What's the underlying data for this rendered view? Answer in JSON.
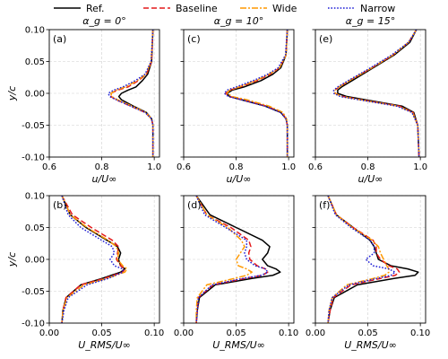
{
  "legend": {
    "entries": [
      {
        "label": "Ref.",
        "color": "#000000",
        "dash": "solid"
      },
      {
        "label": "Baseline",
        "color": "#e41a1c",
        "dash": "dashed"
      },
      {
        "label": "Wide",
        "color": "#ff9900",
        "dash": "dashdot"
      },
      {
        "label": "Narrow",
        "color": "#1f1fd6",
        "dash": "dotted"
      }
    ]
  },
  "chart_data": [
    {
      "type": "line",
      "panel": "(a)",
      "title": "α_g = 0°",
      "xlabel": "u/U∞",
      "ylabel": "y/c",
      "xlim": [
        0.6,
        1.02
      ],
      "ylim": [
        -0.1,
        0.1
      ],
      "xticks": [
        "0.6",
        "0.8",
        "1.0"
      ],
      "yticks": [
        "-0.10",
        "-0.05",
        "0.00",
        "0.05",
        "0.10"
      ],
      "y": [
        0.1,
        0.05,
        0.03,
        0.02,
        0.01,
        0.005,
        0.0,
        -0.005,
        -0.01,
        -0.02,
        -0.03,
        -0.04,
        -0.05,
        -0.1
      ],
      "series": [
        {
          "name": "Ref.",
          "values": [
            0.995,
            0.99,
            0.975,
            0.955,
            0.93,
            0.9,
            0.875,
            0.865,
            0.875,
            0.92,
            0.97,
            0.99,
            0.995,
            0.995
          ]
        },
        {
          "name": "Baseline",
          "values": [
            0.995,
            0.99,
            0.97,
            0.94,
            0.9,
            0.86,
            0.835,
            0.835,
            0.855,
            0.91,
            0.965,
            0.99,
            0.995,
            0.995
          ]
        },
        {
          "name": "Wide",
          "values": [
            0.995,
            0.988,
            0.968,
            0.935,
            0.89,
            0.855,
            0.835,
            0.838,
            0.86,
            0.915,
            0.968,
            0.99,
            0.995,
            0.995
          ]
        },
        {
          "name": "Narrow",
          "values": [
            0.995,
            0.988,
            0.965,
            0.928,
            0.88,
            0.845,
            0.825,
            0.83,
            0.855,
            0.91,
            0.965,
            0.99,
            0.995,
            0.995
          ]
        }
      ]
    },
    {
      "type": "line",
      "panel": "(c)",
      "title": "α_g = 10°",
      "xlabel": "u/U∞",
      "ylabel": "",
      "xlim": [
        0.6,
        1.02
      ],
      "ylim": [
        -0.1,
        0.1
      ],
      "xticks": [
        "0.6",
        "0.8",
        "1.0"
      ],
      "yticks": [],
      "y": [
        0.1,
        0.06,
        0.04,
        0.03,
        0.02,
        0.01,
        0.005,
        0.0,
        -0.005,
        -0.01,
        -0.02,
        -0.03,
        -0.04,
        -0.05,
        -0.1
      ],
      "series": [
        {
          "name": "Ref.",
          "values": [
            0.995,
            0.99,
            0.97,
            0.94,
            0.895,
            0.83,
            0.785,
            0.765,
            0.775,
            0.82,
            0.91,
            0.97,
            0.99,
            0.995,
            0.995
          ]
        },
        {
          "name": "Baseline",
          "values": [
            0.995,
            0.99,
            0.965,
            0.93,
            0.88,
            0.815,
            0.775,
            0.76,
            0.775,
            0.825,
            0.915,
            0.975,
            0.99,
            0.995,
            0.995
          ]
        },
        {
          "name": "Wide",
          "values": [
            0.995,
            0.99,
            0.965,
            0.925,
            0.875,
            0.81,
            0.775,
            0.765,
            0.785,
            0.84,
            0.925,
            0.978,
            0.992,
            0.995,
            0.995
          ]
        },
        {
          "name": "Narrow",
          "values": [
            0.995,
            0.988,
            0.96,
            0.92,
            0.865,
            0.8,
            0.765,
            0.755,
            0.77,
            0.82,
            0.91,
            0.97,
            0.99,
            0.995,
            0.995
          ]
        }
      ]
    },
    {
      "type": "line",
      "panel": "(e)",
      "title": "α_g = 15°",
      "xlabel": "u/U∞",
      "ylabel": "",
      "xlim": [
        0.6,
        1.02
      ],
      "ylim": [
        -0.1,
        0.1
      ],
      "xticks": [
        "0.6",
        "0.8",
        "1.0"
      ],
      "yticks": [],
      "y": [
        0.1,
        0.08,
        0.06,
        0.04,
        0.02,
        0.01,
        0.005,
        0.0,
        -0.005,
        -0.01,
        -0.02,
        -0.03,
        -0.05,
        -0.1
      ],
      "series": [
        {
          "name": "Ref.",
          "values": [
            0.985,
            0.96,
            0.9,
            0.82,
            0.74,
            0.7,
            0.685,
            0.685,
            0.72,
            0.79,
            0.93,
            0.975,
            0.99,
            0.995
          ]
        },
        {
          "name": "Baseline",
          "values": [
            0.985,
            0.955,
            0.895,
            0.815,
            0.73,
            0.69,
            0.675,
            0.675,
            0.705,
            0.775,
            0.92,
            0.972,
            0.99,
            0.995
          ]
        },
        {
          "name": "Wide",
          "values": [
            0.985,
            0.955,
            0.895,
            0.815,
            0.73,
            0.69,
            0.675,
            0.675,
            0.7,
            0.77,
            0.915,
            0.97,
            0.99,
            0.995
          ]
        },
        {
          "name": "Narrow",
          "values": [
            0.985,
            0.955,
            0.89,
            0.81,
            0.725,
            0.685,
            0.67,
            0.67,
            0.695,
            0.765,
            0.91,
            0.968,
            0.99,
            0.995
          ]
        }
      ]
    },
    {
      "type": "line",
      "panel": "(b)",
      "title": "",
      "xlabel": "U_RMS/U∞",
      "ylabel": "y/c",
      "xlim": [
        0.0,
        0.105
      ],
      "ylim": [
        -0.1,
        0.1
      ],
      "xticks": [
        "0.00",
        "0.05",
        "0.10"
      ],
      "yticks": [
        "-0.10",
        "-0.05",
        "0.00",
        "0.05",
        "0.10"
      ],
      "y": [
        0.1,
        0.07,
        0.05,
        0.03,
        0.02,
        0.01,
        0.0,
        -0.01,
        -0.015,
        -0.02,
        -0.03,
        -0.04,
        -0.06,
        -0.08,
        -0.1
      ],
      "series": [
        {
          "name": "Ref.",
          "values": [
            0.012,
            0.02,
            0.035,
            0.055,
            0.065,
            0.068,
            0.066,
            0.068,
            0.072,
            0.068,
            0.05,
            0.03,
            0.016,
            0.013,
            0.012
          ]
        },
        {
          "name": "Baseline",
          "values": [
            0.012,
            0.022,
            0.04,
            0.06,
            0.066,
            0.065,
            0.064,
            0.068,
            0.072,
            0.07,
            0.052,
            0.03,
            0.016,
            0.013,
            0.012
          ]
        },
        {
          "name": "Wide",
          "values": [
            0.012,
            0.02,
            0.036,
            0.056,
            0.064,
            0.066,
            0.065,
            0.07,
            0.074,
            0.072,
            0.055,
            0.033,
            0.017,
            0.013,
            0.012
          ]
        },
        {
          "name": "Narrow",
          "values": [
            0.012,
            0.018,
            0.03,
            0.05,
            0.06,
            0.062,
            0.058,
            0.062,
            0.07,
            0.07,
            0.056,
            0.036,
            0.018,
            0.014,
            0.012
          ]
        }
      ]
    },
    {
      "type": "line",
      "panel": "(d)",
      "title": "",
      "xlabel": "U_RMS/U∞",
      "ylabel": "",
      "xlim": [
        0.0,
        0.105
      ],
      "ylim": [
        -0.1,
        0.1
      ],
      "xticks": [
        "0.00",
        "0.05",
        "0.10"
      ],
      "yticks": [],
      "y": [
        0.1,
        0.07,
        0.05,
        0.03,
        0.02,
        0.01,
        0.0,
        -0.01,
        -0.015,
        -0.02,
        -0.025,
        -0.03,
        -0.04,
        -0.06,
        -0.08,
        -0.1
      ],
      "series": [
        {
          "name": "Ref.",
          "values": [
            0.012,
            0.025,
            0.05,
            0.075,
            0.082,
            0.08,
            0.075,
            0.08,
            0.088,
            0.092,
            0.085,
            0.065,
            0.03,
            0.015,
            0.013,
            0.012
          ]
        },
        {
          "name": "Baseline",
          "values": [
            0.012,
            0.022,
            0.045,
            0.062,
            0.064,
            0.062,
            0.063,
            0.07,
            0.078,
            0.08,
            0.075,
            0.058,
            0.028,
            0.014,
            0.013,
            0.012
          ]
        },
        {
          "name": "Wide",
          "values": [
            0.012,
            0.022,
            0.042,
            0.055,
            0.058,
            0.054,
            0.05,
            0.052,
            0.06,
            0.065,
            0.06,
            0.048,
            0.022,
            0.013,
            0.012,
            0.012
          ]
        },
        {
          "name": "Narrow",
          "values": [
            0.012,
            0.02,
            0.04,
            0.06,
            0.06,
            0.058,
            0.06,
            0.068,
            0.078,
            0.08,
            0.074,
            0.056,
            0.027,
            0.014,
            0.013,
            0.012
          ]
        }
      ]
    },
    {
      "type": "line",
      "panel": "(f)",
      "title": "",
      "xlabel": "U_RMS/U∞",
      "ylabel": "",
      "xlim": [
        0.0,
        0.105
      ],
      "ylim": [
        -0.1,
        0.1
      ],
      "xticks": [
        "0.00",
        "0.05",
        "0.10"
      ],
      "yticks": [],
      "y": [
        0.1,
        0.07,
        0.05,
        0.03,
        0.02,
        0.01,
        0.0,
        -0.01,
        -0.015,
        -0.02,
        -0.025,
        -0.03,
        -0.04,
        -0.06,
        -0.08,
        -0.1
      ],
      "series": [
        {
          "name": "Ref.",
          "values": [
            0.012,
            0.02,
            0.036,
            0.052,
            0.056,
            0.058,
            0.06,
            0.072,
            0.088,
            0.098,
            0.095,
            0.075,
            0.04,
            0.018,
            0.014,
            0.012
          ]
        },
        {
          "name": "Baseline",
          "values": [
            0.012,
            0.02,
            0.036,
            0.055,
            0.058,
            0.058,
            0.062,
            0.07,
            0.078,
            0.08,
            0.076,
            0.062,
            0.034,
            0.017,
            0.014,
            0.012
          ]
        },
        {
          "name": "Wide",
          "values": [
            0.012,
            0.02,
            0.035,
            0.054,
            0.06,
            0.062,
            0.065,
            0.068,
            0.07,
            0.07,
            0.066,
            0.055,
            0.03,
            0.016,
            0.013,
            0.012
          ]
        },
        {
          "name": "Narrow",
          "values": [
            0.012,
            0.019,
            0.034,
            0.052,
            0.056,
            0.056,
            0.048,
            0.055,
            0.07,
            0.076,
            0.072,
            0.058,
            0.032,
            0.016,
            0.013,
            0.012
          ]
        }
      ]
    }
  ]
}
